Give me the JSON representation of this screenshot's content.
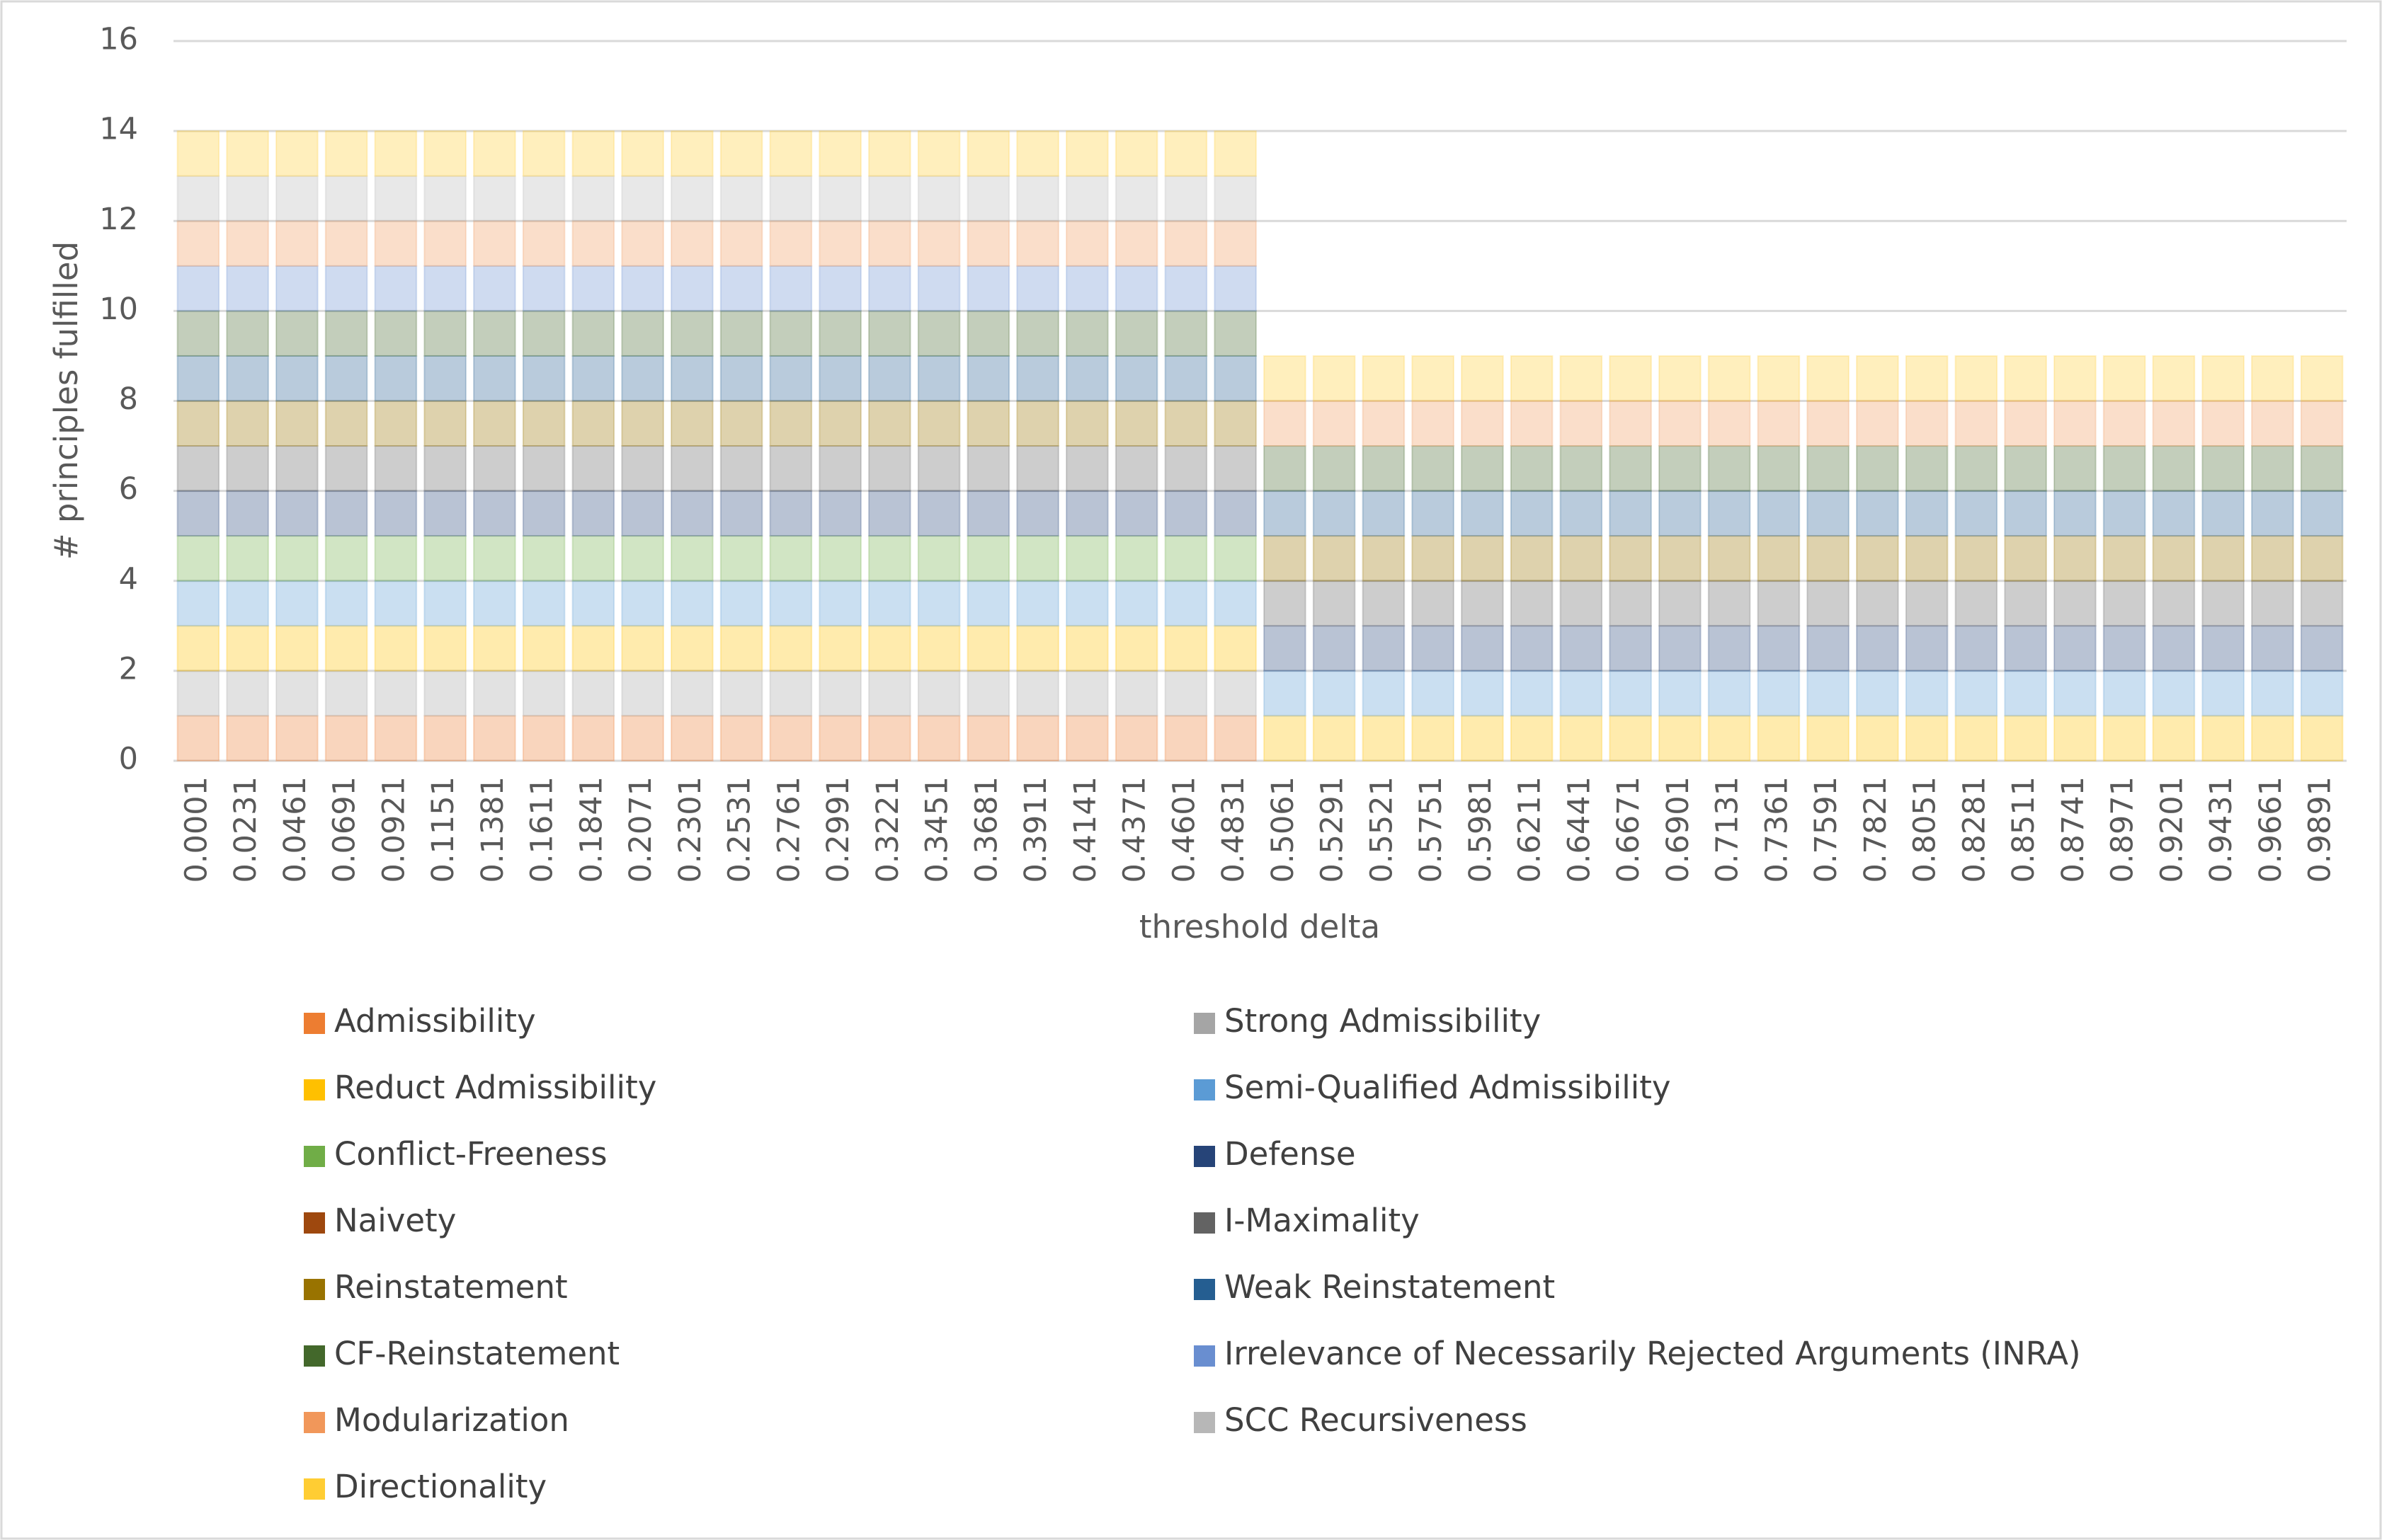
{
  "chart_data": {
    "type": "stacked_bar",
    "x_label": "threshold delta",
    "y_label": "# principles fulfilled",
    "categories": [
      "0.0001",
      "0.0231",
      "0.0461",
      "0.0691",
      "0.0921",
      "0.1151",
      "0.1381",
      "0.1611",
      "0.1841",
      "0.2071",
      "0.2301",
      "0.2531",
      "0.2761",
      "0.2991",
      "0.3221",
      "0.3451",
      "0.3681",
      "0.3911",
      "0.4141",
      "0.4371",
      "0.4601",
      "0.4831",
      "0.5061",
      "0.5291",
      "0.5521",
      "0.5751",
      "0.5981",
      "0.6211",
      "0.6441",
      "0.6671",
      "0.6901",
      "0.7131",
      "0.7361",
      "0.7591",
      "0.7821",
      "0.8051",
      "0.8281",
      "0.8511",
      "0.8741",
      "0.8971",
      "0.9201",
      "0.9431",
      "0.9661",
      "0.9891"
    ],
    "ylim": [
      0,
      16
    ],
    "yticks": [
      0,
      2,
      4,
      6,
      8,
      10,
      12,
      14,
      16
    ],
    "grid": true,
    "series": [
      {
        "name": "Admissibility",
        "color": "#ED7D31",
        "values": [
          1,
          1,
          1,
          1,
          1,
          1,
          1,
          1,
          1,
          1,
          1,
          1,
          1,
          1,
          1,
          1,
          1,
          1,
          1,
          1,
          1,
          1,
          0,
          0,
          0,
          0,
          0,
          0,
          0,
          0,
          0,
          0,
          0,
          0,
          0,
          0,
          0,
          0,
          0,
          0,
          0,
          0,
          0,
          0
        ]
      },
      {
        "name": "Strong Admissibility",
        "color": "#A5A5A5",
        "values": [
          1,
          1,
          1,
          1,
          1,
          1,
          1,
          1,
          1,
          1,
          1,
          1,
          1,
          1,
          1,
          1,
          1,
          1,
          1,
          1,
          1,
          1,
          0,
          0,
          0,
          0,
          0,
          0,
          0,
          0,
          0,
          0,
          0,
          0,
          0,
          0,
          0,
          0,
          0,
          0,
          0,
          0,
          0,
          0
        ]
      },
      {
        "name": "Reduct Admissibility",
        "color": "#FFC000",
        "values": [
          1,
          1,
          1,
          1,
          1,
          1,
          1,
          1,
          1,
          1,
          1,
          1,
          1,
          1,
          1,
          1,
          1,
          1,
          1,
          1,
          1,
          1,
          1,
          1,
          1,
          1,
          1,
          1,
          1,
          1,
          1,
          1,
          1,
          1,
          1,
          1,
          1,
          1,
          1,
          1,
          1,
          1,
          1,
          1
        ]
      },
      {
        "name": "Semi-Qualified Admissibility",
        "color": "#5B9BD5",
        "values": [
          1,
          1,
          1,
          1,
          1,
          1,
          1,
          1,
          1,
          1,
          1,
          1,
          1,
          1,
          1,
          1,
          1,
          1,
          1,
          1,
          1,
          1,
          1,
          1,
          1,
          1,
          1,
          1,
          1,
          1,
          1,
          1,
          1,
          1,
          1,
          1,
          1,
          1,
          1,
          1,
          1,
          1,
          1,
          1
        ]
      },
      {
        "name": "Conflict-Freeness",
        "color": "#70AD47",
        "values": [
          1,
          1,
          1,
          1,
          1,
          1,
          1,
          1,
          1,
          1,
          1,
          1,
          1,
          1,
          1,
          1,
          1,
          1,
          1,
          1,
          1,
          1,
          0,
          0,
          0,
          0,
          0,
          0,
          0,
          0,
          0,
          0,
          0,
          0,
          0,
          0,
          0,
          0,
          0,
          0,
          0,
          0,
          0,
          0
        ]
      },
      {
        "name": "Defense",
        "color": "#264478",
        "values": [
          1,
          1,
          1,
          1,
          1,
          1,
          1,
          1,
          1,
          1,
          1,
          1,
          1,
          1,
          1,
          1,
          1,
          1,
          1,
          1,
          1,
          1,
          1,
          1,
          1,
          1,
          1,
          1,
          1,
          1,
          1,
          1,
          1,
          1,
          1,
          1,
          1,
          1,
          1,
          1,
          1,
          1,
          1,
          1
        ]
      },
      {
        "name": "Naivety",
        "color": "#9E480E",
        "values": [
          0,
          0,
          0,
          0,
          0,
          0,
          0,
          0,
          0,
          0,
          0,
          0,
          0,
          0,
          0,
          0,
          0,
          0,
          0,
          0,
          0,
          0,
          0,
          0,
          0,
          0,
          0,
          0,
          0,
          0,
          0,
          0,
          0,
          0,
          0,
          0,
          0,
          0,
          0,
          0,
          0,
          0,
          0,
          0
        ]
      },
      {
        "name": "I-Maximality",
        "color": "#636363",
        "values": [
          1,
          1,
          1,
          1,
          1,
          1,
          1,
          1,
          1,
          1,
          1,
          1,
          1,
          1,
          1,
          1,
          1,
          1,
          1,
          1,
          1,
          1,
          1,
          1,
          1,
          1,
          1,
          1,
          1,
          1,
          1,
          1,
          1,
          1,
          1,
          1,
          1,
          1,
          1,
          1,
          1,
          1,
          1,
          1
        ]
      },
      {
        "name": "Reinstatement",
        "color": "#997300",
        "values": [
          1,
          1,
          1,
          1,
          1,
          1,
          1,
          1,
          1,
          1,
          1,
          1,
          1,
          1,
          1,
          1,
          1,
          1,
          1,
          1,
          1,
          1,
          1,
          1,
          1,
          1,
          1,
          1,
          1,
          1,
          1,
          1,
          1,
          1,
          1,
          1,
          1,
          1,
          1,
          1,
          1,
          1,
          1,
          1
        ]
      },
      {
        "name": "Weak Reinstatement",
        "color": "#255E91",
        "values": [
          1,
          1,
          1,
          1,
          1,
          1,
          1,
          1,
          1,
          1,
          1,
          1,
          1,
          1,
          1,
          1,
          1,
          1,
          1,
          1,
          1,
          1,
          1,
          1,
          1,
          1,
          1,
          1,
          1,
          1,
          1,
          1,
          1,
          1,
          1,
          1,
          1,
          1,
          1,
          1,
          1,
          1,
          1,
          1
        ]
      },
      {
        "name": "CF-Reinstatement",
        "color": "#43682B",
        "values": [
          1,
          1,
          1,
          1,
          1,
          1,
          1,
          1,
          1,
          1,
          1,
          1,
          1,
          1,
          1,
          1,
          1,
          1,
          1,
          1,
          1,
          1,
          1,
          1,
          1,
          1,
          1,
          1,
          1,
          1,
          1,
          1,
          1,
          1,
          1,
          1,
          1,
          1,
          1,
          1,
          1,
          1,
          1,
          1
        ]
      },
      {
        "name": "Irrelevance of Necessarily Rejected Arguments (INRA)",
        "color": "#698ED0",
        "values": [
          1,
          1,
          1,
          1,
          1,
          1,
          1,
          1,
          1,
          1,
          1,
          1,
          1,
          1,
          1,
          1,
          1,
          1,
          1,
          1,
          1,
          1,
          0,
          0,
          0,
          0,
          0,
          0,
          0,
          0,
          0,
          0,
          0,
          0,
          0,
          0,
          0,
          0,
          0,
          0,
          0,
          0,
          0,
          0
        ]
      },
      {
        "name": "Modularization",
        "color": "#F1975A",
        "values": [
          1,
          1,
          1,
          1,
          1,
          1,
          1,
          1,
          1,
          1,
          1,
          1,
          1,
          1,
          1,
          1,
          1,
          1,
          1,
          1,
          1,
          1,
          1,
          1,
          1,
          1,
          1,
          1,
          1,
          1,
          1,
          1,
          1,
          1,
          1,
          1,
          1,
          1,
          1,
          1,
          1,
          1,
          1,
          1
        ]
      },
      {
        "name": "SCC Recursiveness",
        "color": "#B7B7B7",
        "values": [
          1,
          1,
          1,
          1,
          1,
          1,
          1,
          1,
          1,
          1,
          1,
          1,
          1,
          1,
          1,
          1,
          1,
          1,
          1,
          1,
          1,
          1,
          0,
          0,
          0,
          0,
          0,
          0,
          0,
          0,
          0,
          0,
          0,
          0,
          0,
          0,
          0,
          0,
          0,
          0,
          0,
          0,
          0,
          0
        ]
      },
      {
        "name": "Directionality",
        "color": "#FFCD33",
        "values": [
          1,
          1,
          1,
          1,
          1,
          1,
          1,
          1,
          1,
          1,
          1,
          1,
          1,
          1,
          1,
          1,
          1,
          1,
          1,
          1,
          1,
          1,
          1,
          1,
          1,
          1,
          1,
          1,
          1,
          1,
          1,
          1,
          1,
          1,
          1,
          1,
          1,
          1,
          1,
          1,
          1,
          1,
          1,
          1
        ]
      }
    ]
  }
}
